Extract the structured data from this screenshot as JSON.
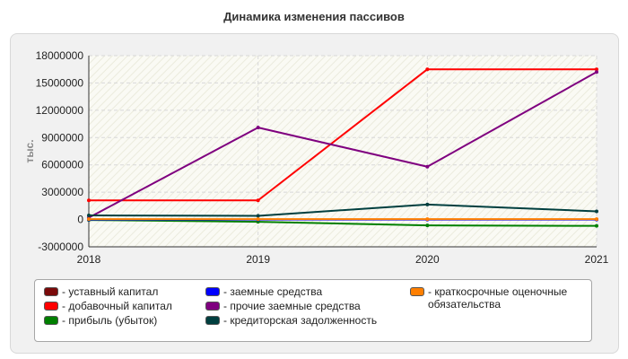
{
  "chart_data": {
    "type": "line",
    "title": "Динамика изменения пассивов",
    "ylabel": "тыс.",
    "xlabel": "",
    "x": [
      2018,
      2019,
      2020,
      2021
    ],
    "x_ticks": [
      "2018",
      "2019",
      "2020",
      "2021"
    ],
    "ylim": [
      -3000000,
      18000000
    ],
    "y_ticks": [
      "-3000000",
      "0",
      "3000000",
      "6000000",
      "9000000",
      "12000000",
      "15000000",
      "18000000"
    ],
    "y_tick_values": [
      -3000000,
      0,
      3000000,
      6000000,
      9000000,
      12000000,
      15000000,
      18000000
    ],
    "grid": true,
    "legend_position": "bottom",
    "series": [
      {
        "name": "- уставный капитал",
        "color": "#7a0a0a",
        "values": [
          10000,
          10000,
          10000,
          10000
        ]
      },
      {
        "name": "- добавочный капитал",
        "color": "#ff0000",
        "values": [
          2100000,
          2100000,
          16500000,
          16500000
        ]
      },
      {
        "name": "- прибыль (убыток)",
        "color": "#007f00",
        "values": [
          -50000,
          -250000,
          -650000,
          -700000
        ]
      },
      {
        "name": "- заемные средства",
        "color": "#0000ff",
        "values": [
          0,
          0,
          0,
          0
        ]
      },
      {
        "name": "- прочие заемные средства",
        "color": "#7f007f",
        "values": [
          200000,
          10100000,
          5800000,
          16200000
        ]
      },
      {
        "name": "- кредиторская задолженность",
        "color": "#003f3f",
        "values": [
          450000,
          400000,
          1650000,
          900000
        ]
      },
      {
        "name": "- краткосрочные оценочные обязательства",
        "color": "#ff7f00",
        "values": [
          50000,
          50000,
          50000,
          50000
        ]
      }
    ]
  }
}
